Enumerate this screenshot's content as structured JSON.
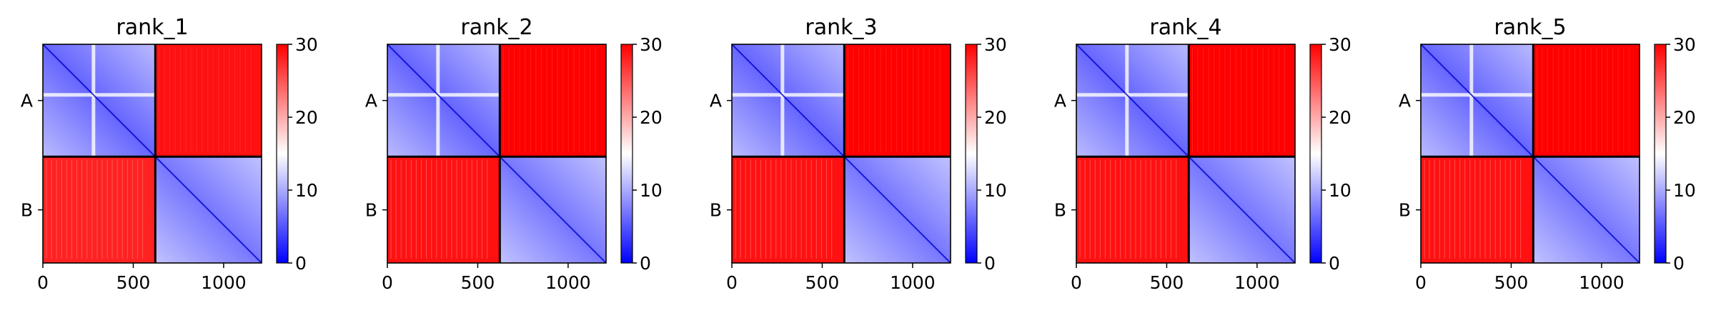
{
  "chart_data": {
    "type": "heatmap",
    "colormap": [
      "#0000ff",
      "#ffffff",
      "#ff0000"
    ],
    "colorbar": {
      "min": 0,
      "max": 30,
      "ticks": [
        "0",
        "10",
        "20",
        "30"
      ]
    },
    "x_ticks": [
      "0",
      "500",
      "1000"
    ],
    "x_tick_values": [
      0,
      500,
      1000
    ],
    "x_range": [
      0,
      1210
    ],
    "chain_labels": [
      "A",
      "B"
    ],
    "chain_boundary": 622,
    "grid": false,
    "panels": [
      {
        "title": "rank_1",
        "blocks": [
          {
            "name": "A-A",
            "x": [
              0,
              622
            ],
            "y": [
              0,
              622
            ],
            "mean_value": 6
          },
          {
            "name": "A-B",
            "x": [
              622,
              1210
            ],
            "y": [
              0,
              622
            ],
            "mean_value": 29
          },
          {
            "name": "B-A",
            "x": [
              0,
              622
            ],
            "y": [
              622,
              1210
            ],
            "mean_value": 28
          },
          {
            "name": "B-B",
            "x": [
              622,
              1210
            ],
            "y": [
              622,
              1210
            ],
            "mean_value": 7
          }
        ]
      },
      {
        "title": "rank_2",
        "blocks": [
          {
            "name": "A-A",
            "x": [
              0,
              622
            ],
            "y": [
              0,
              622
            ],
            "mean_value": 6
          },
          {
            "name": "A-B",
            "x": [
              622,
              1210
            ],
            "y": [
              0,
              622
            ],
            "mean_value": 30
          },
          {
            "name": "B-A",
            "x": [
              0,
              622
            ],
            "y": [
              622,
              1210
            ],
            "mean_value": 29
          },
          {
            "name": "B-B",
            "x": [
              622,
              1210
            ],
            "y": [
              622,
              1210
            ],
            "mean_value": 7
          }
        ]
      },
      {
        "title": "rank_3",
        "blocks": [
          {
            "name": "A-A",
            "x": [
              0,
              622
            ],
            "y": [
              0,
              622
            ],
            "mean_value": 6
          },
          {
            "name": "A-B",
            "x": [
              622,
              1210
            ],
            "y": [
              0,
              622
            ],
            "mean_value": 30
          },
          {
            "name": "B-A",
            "x": [
              0,
              622
            ],
            "y": [
              622,
              1210
            ],
            "mean_value": 29
          },
          {
            "name": "B-B",
            "x": [
              622,
              1210
            ],
            "y": [
              622,
              1210
            ],
            "mean_value": 7
          }
        ]
      },
      {
        "title": "rank_4",
        "blocks": [
          {
            "name": "A-A",
            "x": [
              0,
              622
            ],
            "y": [
              0,
              622
            ],
            "mean_value": 6
          },
          {
            "name": "A-B",
            "x": [
              622,
              1210
            ],
            "y": [
              0,
              622
            ],
            "mean_value": 30
          },
          {
            "name": "B-A",
            "x": [
              0,
              622
            ],
            "y": [
              622,
              1210
            ],
            "mean_value": 29
          },
          {
            "name": "B-B",
            "x": [
              622,
              1210
            ],
            "y": [
              622,
              1210
            ],
            "mean_value": 7
          }
        ]
      },
      {
        "title": "rank_5",
        "blocks": [
          {
            "name": "A-A",
            "x": [
              0,
              622
            ],
            "y": [
              0,
              622
            ],
            "mean_value": 6
          },
          {
            "name": "A-B",
            "x": [
              622,
              1210
            ],
            "y": [
              0,
              622
            ],
            "mean_value": 30
          },
          {
            "name": "B-A",
            "x": [
              0,
              622
            ],
            "y": [
              622,
              1210
            ],
            "mean_value": 29
          },
          {
            "name": "B-B",
            "x": [
              622,
              1210
            ],
            "y": [
              622,
              1210
            ],
            "mean_value": 7
          }
        ]
      }
    ]
  }
}
